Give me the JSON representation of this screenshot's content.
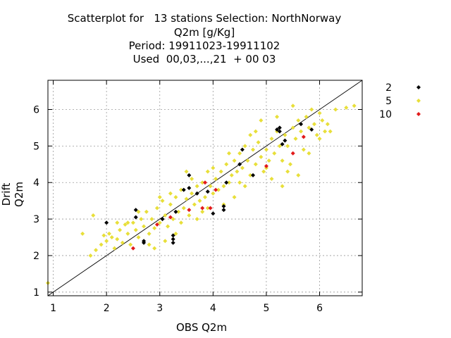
{
  "chart_data": {
    "type": "scatter",
    "title_lines": [
      "Scatterplot for   13 stations Selection: NorthNorway",
      "Q2m [g/Kg]",
      "Period: 19911023-19911102",
      "Used  00,03,...,21  + 00 03"
    ],
    "xlabel": "OBS Q2m",
    "ylabel": "Drift Q2m",
    "xlim": [
      0.9,
      6.8
    ],
    "ylim": [
      0.9,
      6.8
    ],
    "xticks": [
      1,
      2,
      3,
      4,
      5,
      6
    ],
    "yticks": [
      1,
      2,
      3,
      4,
      5,
      6
    ],
    "grid": true,
    "reference_line": "y=x",
    "legend_position": "right",
    "series": [
      {
        "name": "5",
        "color": "#e8df3a",
        "points": [
          [
            0.9,
            1.25
          ],
          [
            1.55,
            2.6
          ],
          [
            1.7,
            2.0
          ],
          [
            1.75,
            3.1
          ],
          [
            1.8,
            2.15
          ],
          [
            1.9,
            2.3
          ],
          [
            1.95,
            2.55
          ],
          [
            2.0,
            2.4
          ],
          [
            2.05,
            2.6
          ],
          [
            2.1,
            2.5
          ],
          [
            2.15,
            2.2
          ],
          [
            2.2,
            2.45
          ],
          [
            2.25,
            2.7
          ],
          [
            2.3,
            2.35
          ],
          [
            2.35,
            2.85
          ],
          [
            2.4,
            2.6
          ],
          [
            2.45,
            2.3
          ],
          [
            2.5,
            2.9
          ],
          [
            2.55,
            2.7
          ],
          [
            2.6,
            2.5
          ],
          [
            2.65,
            3.0
          ],
          [
            2.7,
            2.8
          ],
          [
            2.75,
            3.2
          ],
          [
            2.8,
            2.6
          ],
          [
            2.85,
            3.0
          ],
          [
            2.9,
            2.75
          ],
          [
            2.95,
            3.3
          ],
          [
            3.0,
            2.9
          ],
          [
            3.05,
            3.5
          ],
          [
            3.1,
            3.1
          ],
          [
            3.15,
            2.8
          ],
          [
            3.2,
            3.4
          ],
          [
            3.25,
            3.0
          ],
          [
            3.3,
            3.6
          ],
          [
            3.35,
            3.2
          ],
          [
            3.4,
            3.8
          ],
          [
            3.45,
            3.3
          ],
          [
            3.5,
            3.55
          ],
          [
            3.55,
            3.1
          ],
          [
            3.6,
            3.7
          ],
          [
            3.65,
            3.4
          ],
          [
            3.7,
            3.9
          ],
          [
            3.75,
            3.5
          ],
          [
            3.8,
            4.0
          ],
          [
            3.85,
            3.6
          ],
          [
            3.9,
            3.3
          ],
          [
            3.95,
            3.9
          ],
          [
            4.0,
            3.7
          ],
          [
            4.05,
            4.1
          ],
          [
            4.1,
            3.8
          ],
          [
            4.15,
            4.3
          ],
          [
            4.2,
            3.9
          ],
          [
            4.25,
            4.5
          ],
          [
            4.3,
            4.0
          ],
          [
            4.35,
            4.2
          ],
          [
            4.4,
            4.6
          ],
          [
            4.45,
            4.3
          ],
          [
            4.5,
            4.8
          ],
          [
            4.55,
            4.4
          ],
          [
            4.6,
            5.0
          ],
          [
            4.65,
            4.6
          ],
          [
            4.7,
            4.2
          ],
          [
            4.75,
            4.9
          ],
          [
            4.8,
            4.5
          ],
          [
            4.85,
            5.1
          ],
          [
            4.9,
            4.7
          ],
          [
            4.95,
            4.3
          ],
          [
            5.0,
            4.9
          ],
          [
            5.05,
            4.6
          ],
          [
            5.1,
            5.2
          ],
          [
            5.15,
            4.8
          ],
          [
            5.2,
            5.4
          ],
          [
            5.25,
            5.0
          ],
          [
            5.3,
            4.6
          ],
          [
            5.35,
            5.3
          ],
          [
            5.4,
            5.0
          ],
          [
            5.45,
            4.5
          ],
          [
            5.5,
            5.5
          ],
          [
            5.55,
            5.2
          ],
          [
            5.6,
            5.7
          ],
          [
            5.65,
            5.4
          ],
          [
            5.7,
            4.9
          ],
          [
            5.75,
            5.8
          ],
          [
            5.8,
            5.5
          ],
          [
            5.85,
            6.0
          ],
          [
            5.9,
            5.6
          ],
          [
            5.95,
            5.3
          ],
          [
            6.0,
            5.9
          ],
          [
            6.05,
            5.7
          ],
          [
            6.1,
            5.4
          ],
          [
            6.15,
            5.6
          ],
          [
            6.3,
            6.0
          ],
          [
            6.5,
            6.05
          ],
          [
            6.65,
            6.1
          ],
          [
            2.6,
            3.2
          ],
          [
            3.1,
            2.4
          ],
          [
            3.4,
            2.9
          ],
          [
            3.6,
            4.1
          ],
          [
            3.9,
            4.3
          ],
          [
            4.2,
            3.4
          ],
          [
            4.6,
            3.9
          ],
          [
            5.1,
            4.1
          ],
          [
            5.3,
            3.9
          ],
          [
            5.6,
            4.2
          ],
          [
            2.8,
            2.3
          ],
          [
            3.2,
            3.7
          ],
          [
            3.7,
            3.0
          ],
          [
            4.0,
            4.4
          ],
          [
            4.4,
            3.6
          ],
          [
            4.8,
            5.4
          ],
          [
            5.2,
            5.8
          ],
          [
            5.8,
            4.8
          ],
          [
            2.4,
            2.9
          ],
          [
            3.0,
            3.6
          ],
          [
            3.5,
            4.3
          ],
          [
            3.8,
            3.2
          ],
          [
            4.3,
            4.8
          ],
          [
            4.7,
            5.3
          ],
          [
            5.0,
            4.4
          ],
          [
            5.5,
            6.1
          ],
          [
            2.2,
            2.9
          ],
          [
            2.9,
            2.2
          ],
          [
            3.3,
            2.6
          ],
          [
            4.5,
            4.0
          ],
          [
            4.9,
            5.7
          ],
          [
            5.4,
            4.3
          ],
          [
            6.0,
            5.2
          ],
          [
            6.2,
            5.4
          ]
        ]
      },
      {
        "name": "2",
        "color": "#000000",
        "points": [
          [
            2.0,
            2.9
          ],
          [
            2.55,
            3.05
          ],
          [
            2.55,
            3.25
          ],
          [
            2.7,
            2.4
          ],
          [
            2.7,
            2.35
          ],
          [
            3.05,
            3.0
          ],
          [
            3.25,
            2.35
          ],
          [
            3.25,
            2.45
          ],
          [
            3.25,
            2.55
          ],
          [
            3.3,
            3.2
          ],
          [
            3.45,
            3.8
          ],
          [
            3.55,
            4.2
          ],
          [
            3.55,
            3.85
          ],
          [
            3.7,
            3.7
          ],
          [
            3.9,
            3.75
          ],
          [
            4.0,
            3.15
          ],
          [
            4.2,
            3.25
          ],
          [
            4.2,
            3.35
          ],
          [
            4.25,
            4.0
          ],
          [
            4.5,
            4.5
          ],
          [
            4.55,
            4.9
          ],
          [
            4.75,
            4.2
          ],
          [
            5.2,
            5.45
          ],
          [
            5.25,
            5.5
          ],
          [
            5.25,
            5.4
          ],
          [
            5.3,
            5.05
          ],
          [
            5.35,
            5.15
          ],
          [
            5.65,
            5.6
          ],
          [
            5.85,
            5.45
          ]
        ]
      },
      {
        "name": "10",
        "color": "#e21a1a",
        "points": [
          [
            2.5,
            2.2
          ],
          [
            2.95,
            2.85
          ],
          [
            3.2,
            3.05
          ],
          [
            3.55,
            3.25
          ],
          [
            3.8,
            3.3
          ],
          [
            3.85,
            4.0
          ],
          [
            3.95,
            3.3
          ],
          [
            4.05,
            3.8
          ],
          [
            5.0,
            4.45
          ],
          [
            5.5,
            4.8
          ],
          [
            5.7,
            5.25
          ]
        ]
      }
    ]
  },
  "legend_order": [
    "2",
    "5",
    "10"
  ]
}
